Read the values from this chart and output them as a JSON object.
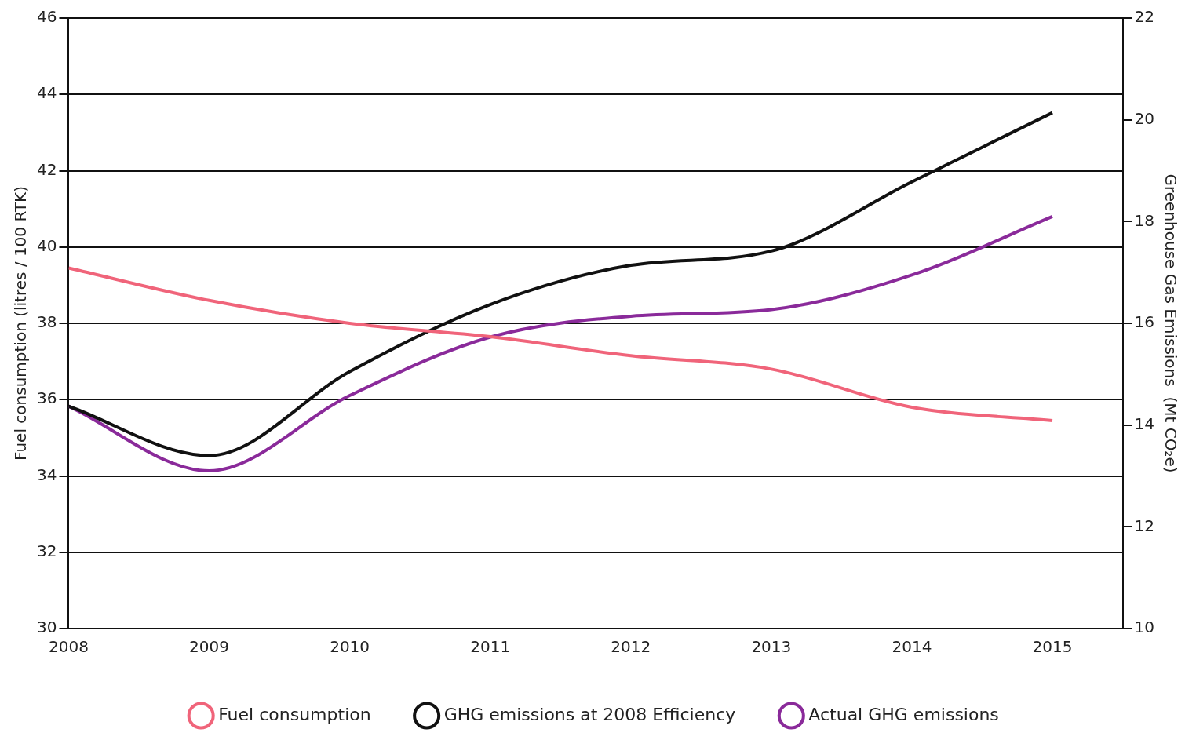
{
  "chart_data": {
    "type": "line",
    "ylabel": "Fuel consumption (litres / 100 RTK)",
    "y2label": "Greenhouse Gas Emissions  (Mt CO₂e)",
    "x": [
      2008,
      2009,
      2010,
      2011,
      2012,
      2013,
      2014,
      2015
    ],
    "xlim": [
      2008,
      2015.5
    ],
    "xticks": [
      2008,
      2009,
      2010,
      2011,
      2012,
      2013,
      2014,
      2015
    ],
    "ylim": [
      30,
      46
    ],
    "yticks": [
      30,
      32,
      34,
      36,
      38,
      40,
      42,
      44,
      46
    ],
    "y2lim": [
      10,
      22
    ],
    "y2ticks": [
      10,
      12,
      14,
      16,
      18,
      20,
      22
    ],
    "grid": "y",
    "legend": "bottom",
    "marker": "none",
    "line_style": "solid",
    "series": [
      {
        "name": "Fuel consumption",
        "color": "#f0647a",
        "values": [
          39.45,
          38.6,
          38.0,
          37.65,
          37.15,
          36.8,
          35.8,
          35.45
        ]
      },
      {
        "name": "GHG emissions at 2008 Efficiency",
        "color": "#111111",
        "axis": "y2",
        "values": [
          14.37,
          13.4,
          15.05,
          16.37,
          17.14,
          17.42,
          18.78,
          20.14
        ]
      },
      {
        "name": "Actual GHG emissions",
        "color": "#8a2a9a",
        "axis": "y2",
        "values": [
          14.37,
          13.1,
          14.58,
          15.73,
          16.14,
          16.27,
          16.95,
          18.1
        ]
      }
    ]
  }
}
